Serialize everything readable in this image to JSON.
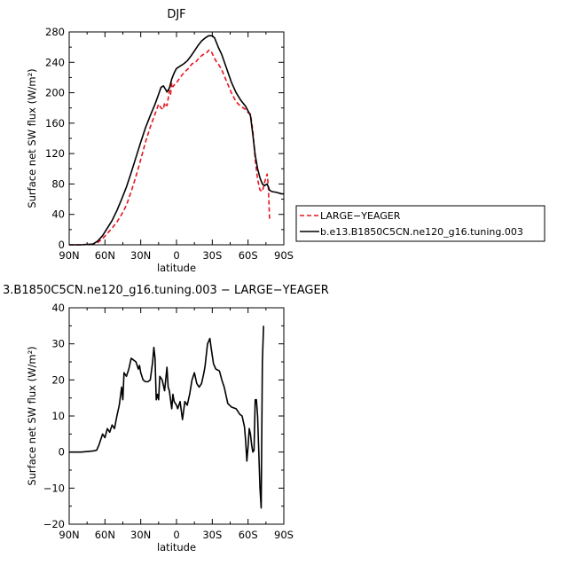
{
  "chart_data": [
    {
      "type": "line",
      "title": "DJF",
      "xlabel": "latitude",
      "ylabel": "Surface net SW flux (W/m²)",
      "xlim": [
        90,
        -90
      ],
      "ylim": [
        0,
        280
      ],
      "xticks": [
        90,
        60,
        30,
        0,
        -30,
        -60,
        -90
      ],
      "xtick_labels": [
        "90N",
        "60N",
        "30N",
        "0",
        "30S",
        "60S",
        "90S"
      ],
      "yticks": [
        0,
        40,
        80,
        120,
        160,
        200,
        240,
        280
      ],
      "ytick_labels": [
        "0",
        "40",
        "80",
        "120",
        "160",
        "200",
        "240",
        "280"
      ],
      "legend": {
        "placement": "outside-right",
        "entries": [
          "LARGE−YEAGER",
          "b.e13.B1850C5CN.ne120_g16.tuning.003"
        ]
      },
      "series": [
        {
          "name": "LARGE−YEAGER",
          "color": "#e8141e",
          "dash": "dashed",
          "points": [
            [
              90,
              0
            ],
            [
              80,
              0
            ],
            [
              70,
              1
            ],
            [
              66,
              3
            ],
            [
              62,
              8
            ],
            [
              58,
              15
            ],
            [
              54,
              22
            ],
            [
              50,
              30
            ],
            [
              46,
              40
            ],
            [
              42,
              52
            ],
            [
              38,
              70
            ],
            [
              34,
              90
            ],
            [
              30,
              112
            ],
            [
              26,
              135
            ],
            [
              22,
              155
            ],
            [
              18,
              172
            ],
            [
              15,
              185
            ],
            [
              13,
              180
            ],
            [
              11,
              178
            ],
            [
              10,
              187
            ],
            [
              9,
              184
            ],
            [
              8,
              183
            ],
            [
              7,
              192
            ],
            [
              6,
              203
            ],
            [
              5,
              198
            ],
            [
              4,
              213
            ],
            [
              3,
              208
            ],
            [
              2,
              210
            ],
            [
              0,
              213
            ],
            [
              -3,
              220
            ],
            [
              -6,
              226
            ],
            [
              -10,
              232
            ],
            [
              -13,
              238
            ],
            [
              -16,
              240
            ],
            [
              -19,
              246
            ],
            [
              -22,
              250
            ],
            [
              -25,
              252
            ],
            [
              -27,
              256
            ],
            [
              -29,
              255
            ],
            [
              -31,
              248
            ],
            [
              -33,
              242
            ],
            [
              -35,
              238
            ],
            [
              -38,
              230
            ],
            [
              -42,
              215
            ],
            [
              -46,
              200
            ],
            [
              -50,
              188
            ],
            [
              -54,
              182
            ],
            [
              -58,
              178
            ],
            [
              -60,
              174
            ],
            [
              -62,
              172
            ],
            [
              -64,
              150
            ],
            [
              -66,
              112
            ],
            [
              -68,
              86
            ],
            [
              -70,
              72
            ],
            [
              -72,
              70
            ],
            [
              -74,
              83
            ],
            [
              -76,
              93
            ],
            [
              -77,
              78
            ],
            [
              -78,
              34
            ]
          ]
        },
        {
          "name": "b.e13.B1850C5CN.ne120_g16.tuning.003",
          "color": "#000000",
          "dash": "solid",
          "points": [
            [
              90,
              0
            ],
            [
              80,
              0
            ],
            [
              70,
              1
            ],
            [
              66,
              5
            ],
            [
              62,
              12
            ],
            [
              58,
              22
            ],
            [
              54,
              32
            ],
            [
              50,
              45
            ],
            [
              46,
              60
            ],
            [
              42,
              76
            ],
            [
              38,
              95
            ],
            [
              34,
              115
            ],
            [
              30,
              135
            ],
            [
              26,
              154
            ],
            [
              22,
              170
            ],
            [
              18,
              185
            ],
            [
              15,
              198
            ],
            [
              13,
              207
            ],
            [
              11,
              209
            ],
            [
              9,
              204
            ],
            [
              8,
              201
            ],
            [
              6,
              206
            ],
            [
              4,
              218
            ],
            [
              2,
              226
            ],
            [
              0,
              232
            ],
            [
              -3,
              235
            ],
            [
              -6,
              238
            ],
            [
              -9,
              242
            ],
            [
              -12,
              248
            ],
            [
              -15,
              255
            ],
            [
              -18,
              262
            ],
            [
              -21,
              268
            ],
            [
              -24,
              272
            ],
            [
              -27,
              275
            ],
            [
              -30,
              275
            ],
            [
              -32,
              272
            ],
            [
              -35,
              260
            ],
            [
              -38,
              250
            ],
            [
              -42,
              232
            ],
            [
              -46,
              214
            ],
            [
              -50,
              200
            ],
            [
              -54,
              190
            ],
            [
              -58,
              182
            ],
            [
              -60,
              176
            ],
            [
              -62,
              170
            ],
            [
              -64,
              145
            ],
            [
              -66,
              118
            ],
            [
              -68,
              100
            ],
            [
              -70,
              88
            ],
            [
              -72,
              80
            ],
            [
              -74,
              78
            ],
            [
              -76,
              80
            ],
            [
              -78,
              72
            ],
            [
              -80,
              70
            ],
            [
              -84,
              69
            ],
            [
              -88,
              67
            ],
            [
              -90,
              67
            ]
          ]
        }
      ]
    },
    {
      "type": "line",
      "title": "3.B1850C5CN.ne120_g16.tuning.003 − LARGE−YEAGER",
      "xlabel": "latitude",
      "ylabel": "Surface net SW flux (W/m²)",
      "xlim": [
        90,
        -90
      ],
      "ylim": [
        -20,
        40
      ],
      "xticks": [
        90,
        60,
        30,
        0,
        -30,
        -60,
        -90
      ],
      "xtick_labels": [
        "90N",
        "60N",
        "30N",
        "0",
        "30S",
        "60S",
        "90S"
      ],
      "yticks": [
        -20,
        -10,
        0,
        10,
        20,
        30,
        40
      ],
      "ytick_labels": [
        "−20",
        "−10",
        "0",
        "10",
        "20",
        "30",
        "40"
      ],
      "series": [
        {
          "color": "#000000",
          "dash": "solid",
          "points": [
            [
              90,
              0
            ],
            [
              80,
              0
            ],
            [
              70,
              0.3
            ],
            [
              67,
              0.5
            ],
            [
              65,
              2
            ],
            [
              62,
              5
            ],
            [
              60,
              4
            ],
            [
              58,
              6.5
            ],
            [
              56,
              5.5
            ],
            [
              54,
              7.5
            ],
            [
              52,
              6.5
            ],
            [
              50,
              10
            ],
            [
              48,
              13
            ],
            [
              46,
              18
            ],
            [
              45,
              14.5
            ],
            [
              44,
              22
            ],
            [
              42,
              21
            ],
            [
              40,
              23
            ],
            [
              38,
              26
            ],
            [
              34,
              25
            ],
            [
              32,
              23
            ],
            [
              31,
              24
            ],
            [
              30,
              22
            ],
            [
              28,
              20
            ],
            [
              26,
              19.5
            ],
            [
              24,
              19.5
            ],
            [
              22,
              20
            ],
            [
              20,
              25
            ],
            [
              19,
              29
            ],
            [
              18,
              26
            ],
            [
              17,
              14.5
            ],
            [
              16,
              16
            ],
            [
              15,
              14.5
            ],
            [
              14,
              21
            ],
            [
              12,
              20
            ],
            [
              10,
              17
            ],
            [
              8,
              23.5
            ],
            [
              7,
              18
            ],
            [
              6,
              17
            ],
            [
              4,
              12
            ],
            [
              3,
              16
            ],
            [
              2,
              14
            ],
            [
              0,
              13
            ],
            [
              -1,
              12
            ],
            [
              -3,
              14
            ],
            [
              -5,
              9
            ],
            [
              -7,
              14
            ],
            [
              -9,
              13
            ],
            [
              -11,
              16
            ],
            [
              -13,
              20
            ],
            [
              -15,
              22
            ],
            [
              -17,
              19
            ],
            [
              -19,
              18
            ],
            [
              -21,
              19
            ],
            [
              -23,
              22
            ],
            [
              -24,
              24
            ],
            [
              -26,
              30
            ],
            [
              -28,
              31.5
            ],
            [
              -29,
              29
            ],
            [
              -31,
              24.5
            ],
            [
              -33,
              23
            ],
            [
              -36,
              22.5
            ],
            [
              -38,
              20
            ],
            [
              -40,
              18
            ],
            [
              -43,
              13.5
            ],
            [
              -46,
              12.5
            ],
            [
              -50,
              12
            ],
            [
              -53,
              10.5
            ],
            [
              -55,
              10
            ],
            [
              -57,
              7
            ],
            [
              -58,
              3
            ],
            [
              -59,
              -2.5
            ],
            [
              -60,
              1.5
            ],
            [
              -61,
              6.5
            ],
            [
              -62,
              5
            ],
            [
              -63,
              2
            ],
            [
              -64,
              0
            ],
            [
              -65,
              0.5
            ],
            [
              -66,
              14.5
            ],
            [
              -67,
              14.5
            ],
            [
              -68,
              10
            ],
            [
              -69,
              0
            ],
            [
              -70,
              -10
            ],
            [
              -71,
              -15.5
            ],
            [
              -72,
              25
            ],
            [
              -73,
              35
            ]
          ]
        }
      ]
    }
  ]
}
